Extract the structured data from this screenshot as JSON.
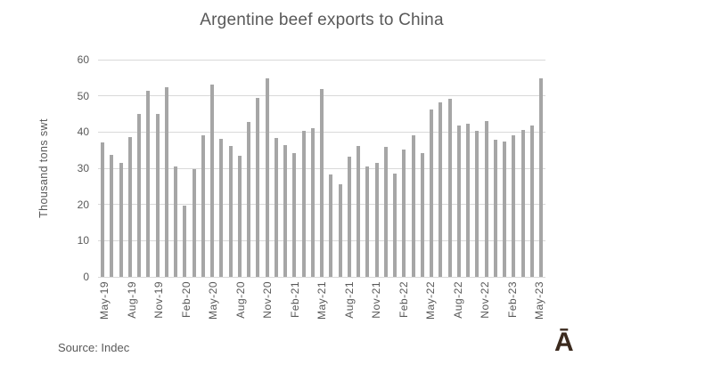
{
  "page": {
    "title": "Argentine beef exports to China",
    "source_note": "Source: Indec",
    "logo_glyph": "Ā"
  },
  "colors": {
    "bar": "#a6a6a6",
    "gridline": "#d9d9d9",
    "text": "#595959",
    "logo": "#3b2a1e",
    "background": "#ffffff"
  },
  "chart_data": {
    "type": "bar",
    "title": "Argentine beef exports to China",
    "xlabel": "",
    "ylabel": "Thousand tons swt",
    "ylim": [
      0,
      60
    ],
    "yticks": [
      0,
      10,
      20,
      30,
      40,
      50,
      60
    ],
    "grid": true,
    "legend": false,
    "x_label_every": 3,
    "categories": [
      "May-19",
      "Jun-19",
      "Jul-19",
      "Aug-19",
      "Sep-19",
      "Oct-19",
      "Nov-19",
      "Dec-19",
      "Jan-20",
      "Feb-20",
      "Mar-20",
      "Apr-20",
      "May-20",
      "Jun-20",
      "Jul-20",
      "Aug-20",
      "Sep-20",
      "Oct-20",
      "Nov-20",
      "Dec-20",
      "Jan-21",
      "Feb-21",
      "Mar-21",
      "Apr-21",
      "May-21",
      "Jun-21",
      "Jul-21",
      "Aug-21",
      "Sep-21",
      "Oct-21",
      "Nov-21",
      "Dec-21",
      "Jan-22",
      "Feb-22",
      "Mar-22",
      "Apr-22",
      "May-22",
      "Jun-22",
      "Jul-22",
      "Aug-22",
      "Sep-22",
      "Oct-22",
      "Nov-22",
      "Dec-22",
      "Jan-23",
      "Feb-23",
      "Mar-23",
      "Apr-23",
      "May-23"
    ],
    "values": [
      37.1,
      33.8,
      31.6,
      38.7,
      44.9,
      51.4,
      45.1,
      52.3,
      30.6,
      19.6,
      29.8,
      39.1,
      53.2,
      38.1,
      36.2,
      33.5,
      42.7,
      49.4,
      54.9,
      38.3,
      36.4,
      34.1,
      40.3,
      41.0,
      52.0,
      28.2,
      25.6,
      33.3,
      36.2,
      30.6,
      31.4,
      36.0,
      28.5,
      35.2,
      39.2,
      34.3,
      46.3,
      48.3,
      49.2,
      41.8,
      42.4,
      40.4,
      43.0,
      37.9,
      37.5,
      39.2,
      40.7,
      41.9,
      54.8
    ]
  }
}
